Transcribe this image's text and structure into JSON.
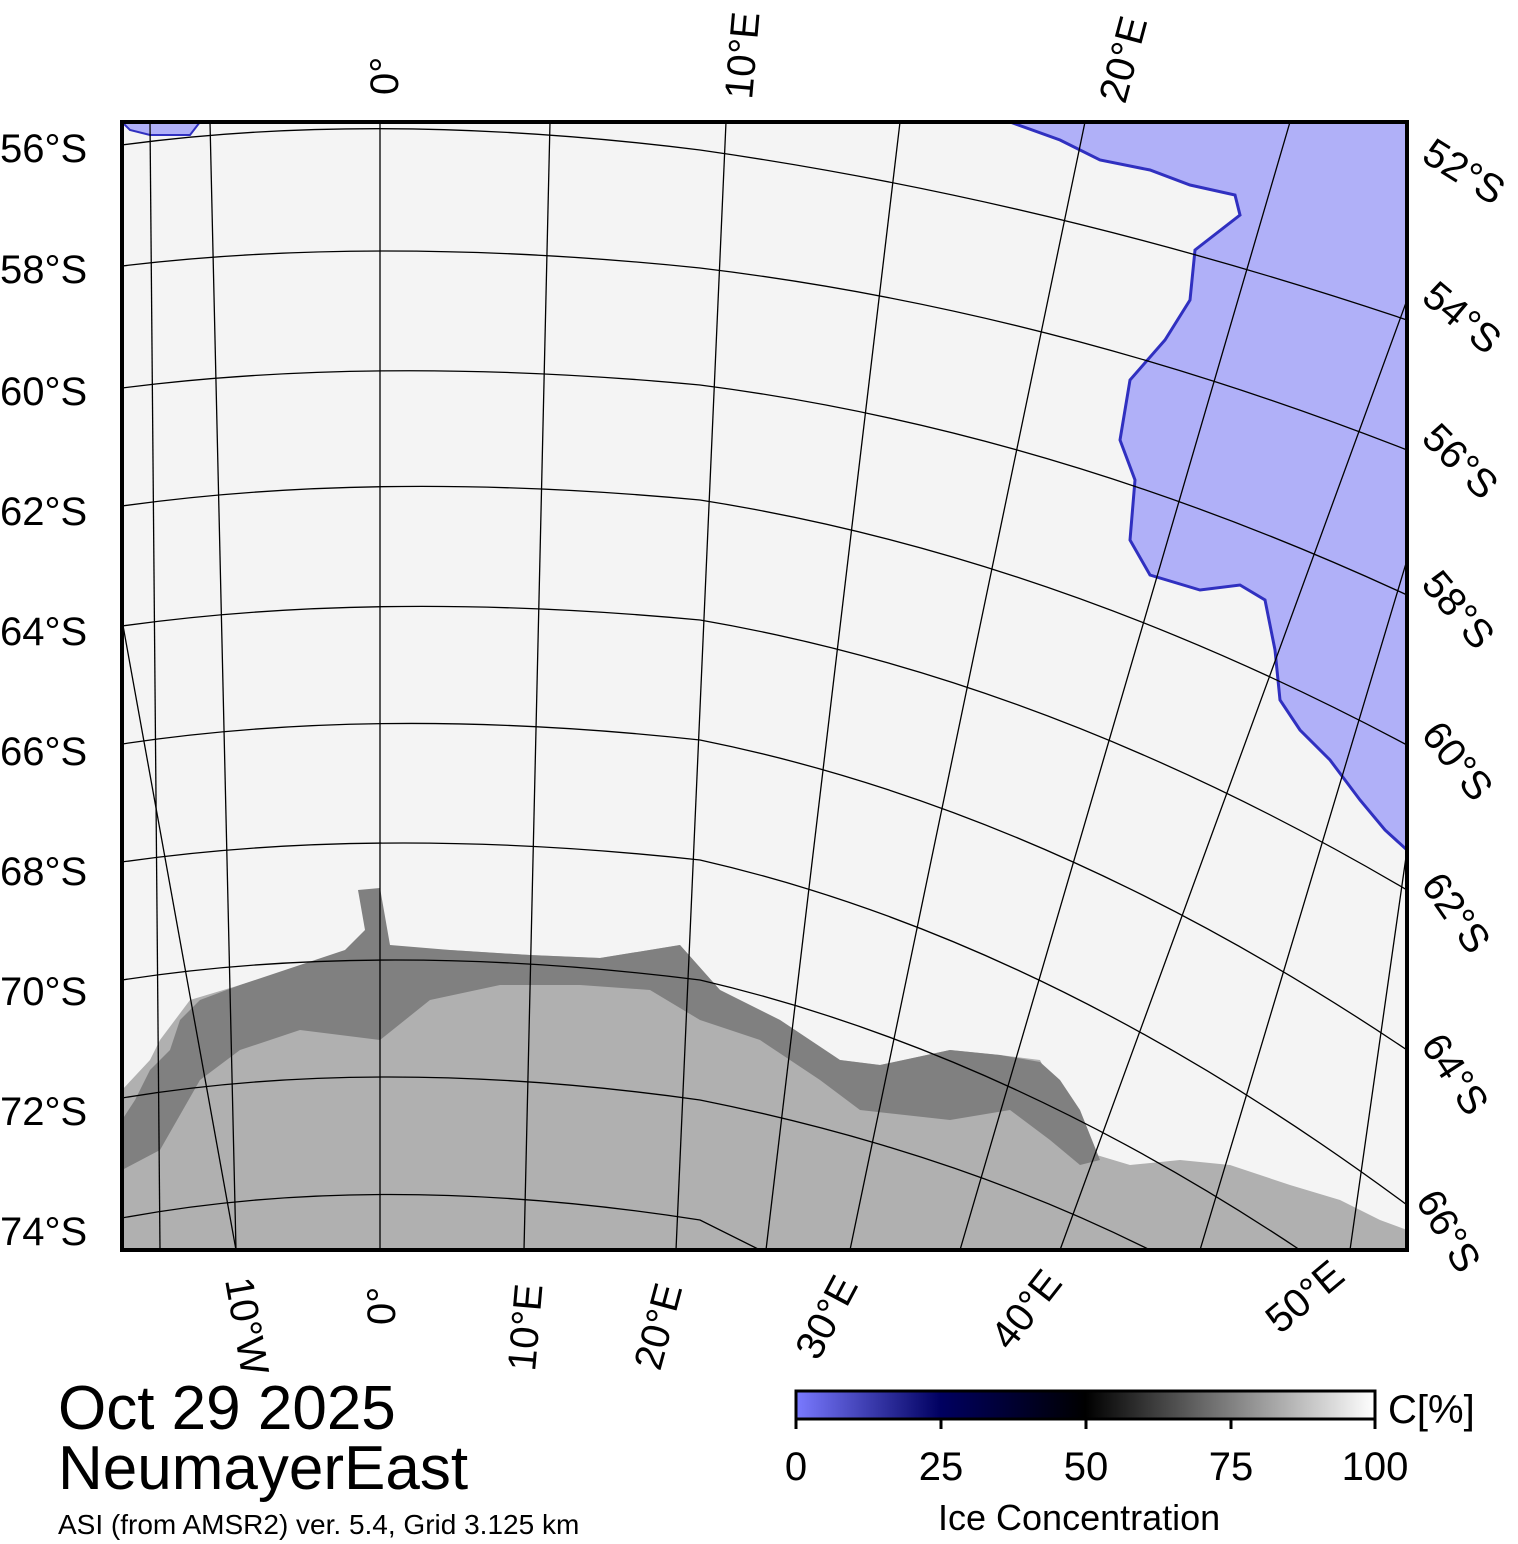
{
  "title": {
    "date": "Oct 29 2025",
    "region": "NeumayerEast"
  },
  "source": "ASI (from AMSR2) ver. 5.4,  Grid 3.125 km",
  "colorbar": {
    "unit": "C[%]",
    "ticks": [
      "0",
      "25",
      "50",
      "75",
      "100"
    ],
    "title": "Ice Concentration",
    "colors": {
      "low": "#7a7aff",
      "mid": "#000060",
      "fifty": "#000000",
      "high": "#ffffff"
    }
  },
  "map": {
    "colors": {
      "ocean": "#b0b0f8",
      "land": "#b0b0b0",
      "ice_shelf": "#808080",
      "sea_ice": "#f4f4f4"
    },
    "left_lat_labels": [
      "56°S",
      "58°S",
      "60°S",
      "62°S",
      "64°S",
      "66°S",
      "68°S",
      "70°S",
      "72°S",
      "74°S"
    ],
    "right_lat_labels": [
      "52°S",
      "54°S",
      "56°S",
      "58°S",
      "60°S",
      "62°S",
      "64°S",
      "66°S"
    ],
    "top_lon_labels": [
      "0°",
      "10°E",
      "20°E"
    ],
    "bottom_lon_labels": [
      "10°W",
      "0°",
      "10°E",
      "20°E",
      "30°E",
      "40°E",
      "50°E"
    ]
  }
}
